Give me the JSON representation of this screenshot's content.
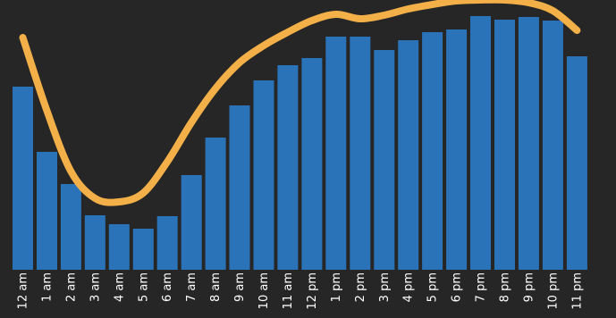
{
  "chart_data": {
    "type": "bar",
    "categories": [
      "12 am",
      "1 am",
      "2 am",
      "3 am",
      "4 am",
      "5 am",
      "6 am",
      "7 am",
      "8 am",
      "9 am",
      "10 am",
      "11 am",
      "12 pm",
      "1 pm",
      "2 pm",
      "3 pm",
      "4 pm",
      "5 pm",
      "6 pm",
      "7 pm",
      "8 pm",
      "9 pm",
      "10 pm",
      "11 pm"
    ],
    "series": [
      {
        "kind": "bar",
        "color": "#2a73b8",
        "values": [
          205,
          132,
          96,
          61,
          51,
          46,
          60,
          106,
          148,
          184,
          212,
          229,
          237,
          261,
          261,
          246,
          257,
          266,
          269,
          284,
          280,
          283,
          279,
          239
        ]
      },
      {
        "kind": "line",
        "color": "#f4b048",
        "values": [
          260,
          178,
          110,
          80,
          76,
          86,
          121,
          165,
          203,
          232,
          251,
          266,
          279,
          286,
          281,
          285,
          292,
          297,
          301,
          302,
          302,
          299,
          290,
          268
        ]
      }
    ],
    "xlabel": "",
    "ylabel": "",
    "ylim": [
      0,
      302
    ],
    "grid": false,
    "legend": "none"
  }
}
